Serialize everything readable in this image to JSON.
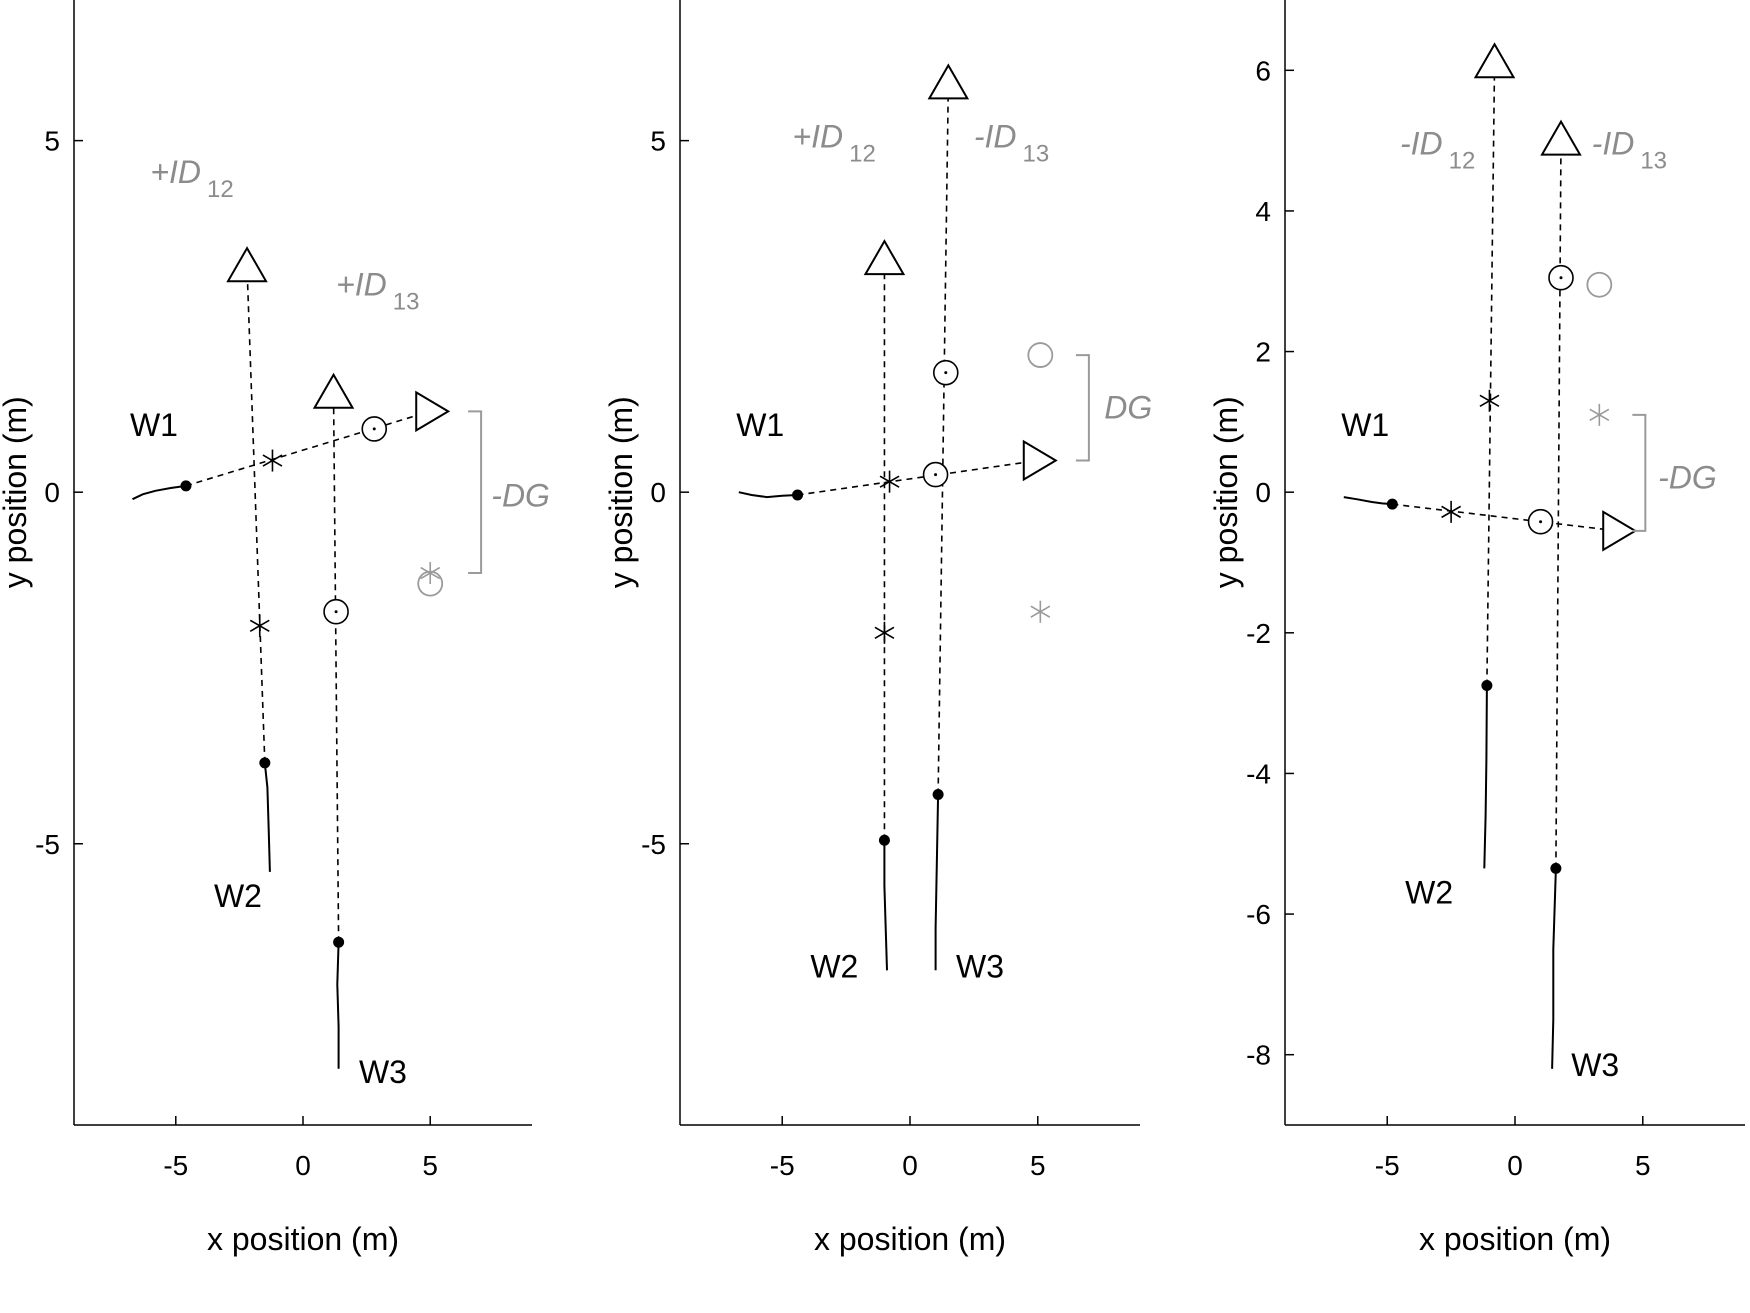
{
  "colors": {
    "ink": "#000000",
    "ghost": "#9a9a9a",
    "annotation": "#8c8c8c"
  },
  "chart_data": [
    {
      "type": "scatter",
      "title": "",
      "xlabel": "x position (m)",
      "ylabel": "y position (m)",
      "xlim": [
        -9,
        9
      ],
      "ylim": [
        -9,
        7
      ],
      "xticks": [
        -5,
        0,
        5
      ],
      "xtick_labels": [
        "-5",
        "0",
        "5"
      ],
      "yticks": [
        -5,
        0,
        5
      ],
      "ytick_labels": [
        "-5",
        "0",
        "5"
      ],
      "grid": false,
      "tracks": [
        {
          "label": "W1",
          "solid": [
            [
              -6.7,
              -0.1
            ],
            [
              -6.3,
              -0.03
            ],
            [
              -5.8,
              0.02
            ],
            [
              -5.2,
              0.06
            ],
            [
              -4.6,
              0.09
            ]
          ],
          "dashed": [
            [
              -4.6,
              0.09
            ],
            [
              5.0,
              1.15
            ]
          ],
          "label_xy": [
            -6.8,
            0.8
          ]
        },
        {
          "label": "W2",
          "solid": [
            [
              -1.3,
              -5.4
            ],
            [
              -1.35,
              -4.8
            ],
            [
              -1.4,
              -4.2
            ],
            [
              -1.5,
              -3.85
            ]
          ],
          "dashed": [
            [
              -1.5,
              -3.85
            ],
            [
              -2.2,
              3.2
            ]
          ],
          "label_xy": [
            -3.5,
            -5.9
          ]
        },
        {
          "label": "W3",
          "solid": [
            [
              1.4,
              -8.2
            ],
            [
              1.4,
              -7.6
            ],
            [
              1.35,
              -7.0
            ],
            [
              1.4,
              -6.4
            ]
          ],
          "dashed": [
            [
              1.4,
              -6.4
            ],
            [
              1.2,
              1.4
            ]
          ],
          "label_xy": [
            2.2,
            -8.4
          ]
        }
      ],
      "dots": [
        [
          -4.6,
          0.09
        ],
        [
          -1.5,
          -3.85
        ],
        [
          1.4,
          -6.4
        ]
      ],
      "triangles_up": [
        [
          -2.2,
          3.2
        ],
        [
          1.2,
          1.4
        ]
      ],
      "triangles_right": [
        [
          5.0,
          1.15
        ]
      ],
      "stars": [
        [
          -1.2,
          0.45
        ],
        [
          -1.7,
          -1.9
        ]
      ],
      "circles": [
        [
          2.8,
          0.9
        ],
        [
          1.3,
          -1.7
        ]
      ],
      "ghost_stars": [
        [
          5.0,
          -1.15
        ]
      ],
      "ghost_circles": [
        [
          5.0,
          -1.3
        ]
      ],
      "bracket": {
        "x": 7.0,
        "y1": 1.15,
        "y2": -1.15
      },
      "annotations": [
        {
          "text": "+ID",
          "sub": "12",
          "xy": [
            -6.0,
            4.4
          ]
        },
        {
          "text": "+ID",
          "sub": "13",
          "xy": [
            1.3,
            2.8
          ]
        },
        {
          "text": "-DG",
          "sub": "",
          "xy": [
            7.4,
            -0.2
          ]
        }
      ]
    },
    {
      "type": "scatter",
      "title": "",
      "xlabel": "x position (m)",
      "ylabel": "y position (m)",
      "xlim": [
        -9,
        9
      ],
      "ylim": [
        -9,
        7
      ],
      "xticks": [
        -5,
        0,
        5
      ],
      "xtick_labels": [
        "-5",
        "0",
        "5"
      ],
      "yticks": [
        -5,
        0,
        5
      ],
      "ytick_labels": [
        "-5",
        "0",
        "5"
      ],
      "grid": false,
      "tracks": [
        {
          "label": "W1",
          "solid": [
            [
              -6.7,
              0.0
            ],
            [
              -6.2,
              -0.04
            ],
            [
              -5.6,
              -0.07
            ],
            [
              -5.0,
              -0.05
            ],
            [
              -4.4,
              -0.04
            ]
          ],
          "dashed": [
            [
              -4.4,
              -0.04
            ],
            [
              5.0,
              0.45
            ]
          ],
          "label_xy": [
            -6.8,
            0.8
          ]
        },
        {
          "label": "W2",
          "solid": [
            [
              -0.9,
              -6.8
            ],
            [
              -0.95,
              -6.2
            ],
            [
              -1.0,
              -5.6
            ],
            [
              -1.0,
              -4.95
            ]
          ],
          "dashed": [
            [
              -1.0,
              -4.95
            ],
            [
              -1.0,
              3.3
            ]
          ],
          "label_xy": [
            -3.9,
            -6.9
          ]
        },
        {
          "label": "W3",
          "solid": [
            [
              1.0,
              -6.8
            ],
            [
              1.0,
              -6.2
            ],
            [
              1.05,
              -5.3
            ],
            [
              1.1,
              -4.3
            ]
          ],
          "dashed": [
            [
              1.1,
              -4.3
            ],
            [
              1.5,
              5.8
            ]
          ],
          "label_xy": [
            1.8,
            -6.9
          ]
        }
      ],
      "dots": [
        [
          -4.4,
          -0.04
        ],
        [
          -1.0,
          -4.95
        ],
        [
          1.1,
          -4.3
        ]
      ],
      "triangles_up": [
        [
          -1.0,
          3.3
        ],
        [
          1.5,
          5.8
        ]
      ],
      "triangles_right": [
        [
          5.0,
          0.45
        ]
      ],
      "stars": [
        [
          -0.8,
          0.15
        ],
        [
          -1.0,
          -2.0
        ]
      ],
      "circles": [
        [
          1.4,
          1.7
        ],
        [
          1.0,
          0.25
        ]
      ],
      "ghost_stars": [
        [
          5.1,
          -1.7
        ]
      ],
      "ghost_circles": [
        [
          5.1,
          1.95
        ]
      ],
      "bracket": {
        "x": 7.0,
        "y1": 1.95,
        "y2": 0.45
      },
      "annotations": [
        {
          "text": "+ID",
          "sub": "12",
          "xy": [
            -4.6,
            4.9
          ]
        },
        {
          "text": "-ID",
          "sub": "13",
          "xy": [
            2.5,
            4.9
          ]
        },
        {
          "text": "DG",
          "sub": "",
          "xy": [
            7.6,
            1.05
          ]
        }
      ]
    },
    {
      "type": "scatter",
      "title": "",
      "xlabel": "x position (m)",
      "ylabel": "y position (m)",
      "xlim": [
        -9,
        9
      ],
      "ylim": [
        -9,
        7
      ],
      "xticks": [
        -5,
        0,
        5
      ],
      "xtick_labels": [
        "-5",
        "0",
        "5"
      ],
      "yticks": [
        -8,
        -6,
        -4,
        -2,
        0,
        2,
        4,
        6
      ],
      "ytick_labels": [
        "-8",
        "-6",
        "-4",
        "-2",
        "0",
        "2",
        "4",
        "6"
      ],
      "grid": false,
      "tracks": [
        {
          "label": "W1",
          "solid": [
            [
              -6.7,
              -0.07
            ],
            [
              -6.2,
              -0.1
            ],
            [
              -5.6,
              -0.14
            ],
            [
              -5.2,
              -0.16
            ],
            [
              -4.8,
              -0.17
            ]
          ],
          "dashed": [
            [
              -4.8,
              -0.17
            ],
            [
              4.0,
              -0.55
            ]
          ],
          "label_xy": [
            -6.8,
            0.8
          ]
        },
        {
          "label": "W2",
          "solid": [
            [
              -1.2,
              -5.35
            ],
            [
              -1.15,
              -4.6
            ],
            [
              -1.12,
              -3.8
            ],
            [
              -1.1,
              -2.75
            ]
          ],
          "dashed": [
            [
              -1.1,
              -2.75
            ],
            [
              -0.8,
              6.1
            ]
          ],
          "label_xy": [
            -4.3,
            -5.85
          ]
        },
        {
          "label": "W3",
          "solid": [
            [
              1.45,
              -8.2
            ],
            [
              1.5,
              -7.5
            ],
            [
              1.5,
              -6.5
            ],
            [
              1.6,
              -5.35
            ]
          ],
          "dashed": [
            [
              1.6,
              -5.35
            ],
            [
              1.8,
              5.0
            ]
          ],
          "label_xy": [
            2.2,
            -8.3
          ]
        }
      ],
      "dots": [
        [
          -4.8,
          -0.17
        ],
        [
          -1.1,
          -2.75
        ],
        [
          1.6,
          -5.35
        ]
      ],
      "triangles_up": [
        [
          -0.8,
          6.1
        ],
        [
          1.8,
          5.0
        ]
      ],
      "triangles_right": [
        [
          4.0,
          -0.55
        ]
      ],
      "stars": [
        [
          -2.5,
          -0.28
        ],
        [
          -1.0,
          1.3
        ]
      ],
      "circles": [
        [
          1.8,
          3.05
        ],
        [
          1.0,
          -0.42
        ]
      ],
      "ghost_stars": [
        [
          3.3,
          1.1
        ]
      ],
      "ghost_circles": [
        [
          3.3,
          2.95
        ]
      ],
      "bracket": {
        "x": 5.1,
        "y1": 1.1,
        "y2": -0.55
      },
      "annotations": [
        {
          "text": "-ID",
          "sub": "12",
          "xy": [
            -4.5,
            4.8
          ]
        },
        {
          "text": "-ID",
          "sub": "13",
          "xy": [
            3.0,
            4.8
          ]
        },
        {
          "text": "-DG",
          "sub": "",
          "xy": [
            5.6,
            0.05
          ]
        }
      ]
    }
  ]
}
